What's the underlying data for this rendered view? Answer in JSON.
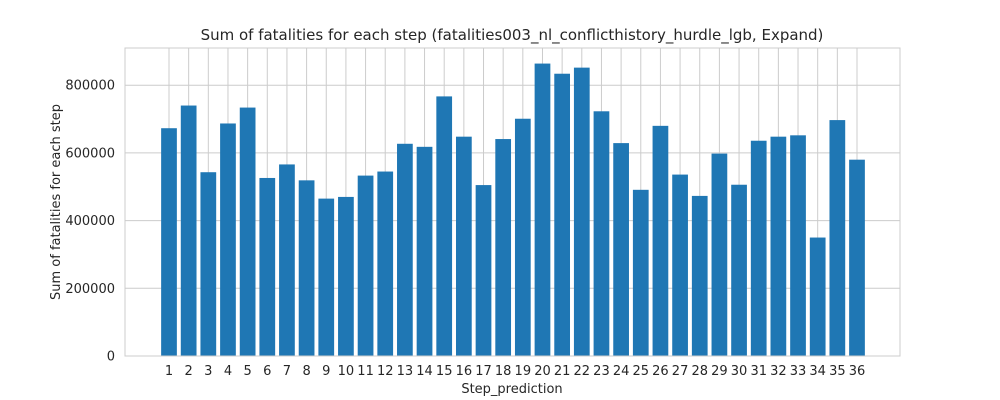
{
  "chart_data": {
    "type": "bar",
    "title": "Sum of fatalities for each step (fatalities003_nl_conflicthistory_hurdle_lgb, Expand)",
    "xlabel": "Step_prediction",
    "ylabel": "Sum of fatalities for each step",
    "categories": [
      "1",
      "2",
      "3",
      "4",
      "5",
      "6",
      "7",
      "8",
      "9",
      "10",
      "11",
      "12",
      "13",
      "14",
      "15",
      "16",
      "17",
      "18",
      "19",
      "20",
      "21",
      "22",
      "23",
      "24",
      "25",
      "26",
      "27",
      "28",
      "29",
      "30",
      "31",
      "32",
      "33",
      "34",
      "35",
      "36"
    ],
    "values": [
      673000,
      740000,
      543000,
      687000,
      734000,
      526000,
      566000,
      519000,
      465000,
      470000,
      533000,
      545000,
      627000,
      618000,
      767000,
      648000,
      505000,
      641000,
      701000,
      864000,
      834000,
      852000,
      723000,
      629000,
      491000,
      680000,
      536000,
      473000,
      598000,
      506000,
      636000,
      648000,
      652000,
      350000,
      697000,
      580000
    ],
    "ylim": [
      0,
      910000
    ],
    "yticks": [
      0,
      200000,
      400000,
      600000,
      800000
    ],
    "ytick_labels": [
      "0",
      "200000",
      "400000",
      "600000",
      "800000"
    ],
    "bar_color": "#1f77b4",
    "grid": true
  }
}
